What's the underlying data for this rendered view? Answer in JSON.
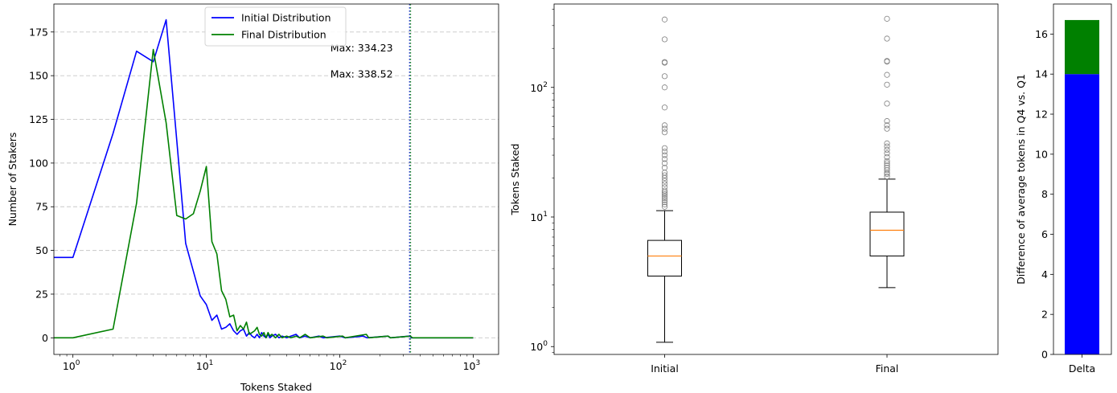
{
  "chart_data": [
    {
      "type": "line",
      "xlabel": "Tokens Staked",
      "ylabel": "Number of Stakers",
      "xscale": "log",
      "xlim": [
        0.72,
        1550
      ],
      "ylim": [
        -9.5,
        191
      ],
      "xtick_values": [
        1,
        10,
        100,
        1000
      ],
      "xtick_labels": [
        {
          "base": "10",
          "exp": "0"
        },
        {
          "base": "10",
          "exp": "1"
        },
        {
          "base": "10",
          "exp": "2"
        },
        {
          "base": "10",
          "exp": "3"
        }
      ],
      "ytick_values": [
        0,
        25,
        50,
        75,
        100,
        125,
        150,
        175
      ],
      "ytick_labels": [
        "0",
        "25",
        "50",
        "75",
        "100",
        "125",
        "150",
        "175"
      ],
      "grid": "horizontal dashed",
      "legend_position": "top-center",
      "series": [
        {
          "name": "Initial Distribution",
          "color": "#0000ff",
          "points": [
            [
              0.72,
              46
            ],
            [
              1,
              46
            ],
            [
              2,
              117
            ],
            [
              3,
              164
            ],
            [
              4,
              158
            ],
            [
              5,
              182
            ],
            [
              6,
              113
            ],
            [
              7,
              54
            ],
            [
              8,
              38
            ],
            [
              9,
              24
            ],
            [
              10,
              19
            ],
            [
              11,
              10
            ],
            [
              12,
              13
            ],
            [
              13,
              5
            ],
            [
              14,
              6
            ],
            [
              15,
              8
            ],
            [
              16,
              4
            ],
            [
              17,
              2
            ],
            [
              18,
              4
            ],
            [
              19,
              5
            ],
            [
              20,
              1
            ],
            [
              21,
              3
            ],
            [
              22,
              1
            ],
            [
              23,
              0
            ],
            [
              24,
              2
            ],
            [
              25,
              0
            ],
            [
              26,
              3
            ],
            [
              27,
              1
            ],
            [
              28,
              0
            ],
            [
              29,
              2
            ],
            [
              30,
              0
            ],
            [
              31,
              1
            ],
            [
              33,
              2
            ],
            [
              35,
              0
            ],
            [
              37,
              1
            ],
            [
              40,
              0
            ],
            [
              43,
              1
            ],
            [
              47,
              2
            ],
            [
              50,
              0
            ],
            [
              55,
              1
            ],
            [
              60,
              0
            ],
            [
              70,
              1
            ],
            [
              75,
              0
            ],
            [
              100,
              1
            ],
            [
              110,
              0
            ],
            [
              150,
              1
            ],
            [
              160,
              0
            ],
            [
              230,
              1
            ],
            [
              240,
              0
            ],
            [
              334,
              1
            ],
            [
              345,
              0
            ],
            [
              1000,
              0
            ]
          ]
        },
        {
          "name": "Final Distribution",
          "color": "#008000",
          "points": [
            [
              0.72,
              0
            ],
            [
              1,
              0
            ],
            [
              2,
              5
            ],
            [
              3,
              77
            ],
            [
              4,
              165
            ],
            [
              5,
              123
            ],
            [
              6,
              70
            ],
            [
              7,
              68
            ],
            [
              8,
              71
            ],
            [
              9,
              84
            ],
            [
              10,
              98
            ],
            [
              11,
              55
            ],
            [
              12,
              48
            ],
            [
              13,
              27
            ],
            [
              14,
              22
            ],
            [
              15,
              12
            ],
            [
              16,
              13
            ],
            [
              17,
              4
            ],
            [
              18,
              7
            ],
            [
              19,
              5
            ],
            [
              20,
              9
            ],
            [
              21,
              2
            ],
            [
              22,
              3
            ],
            [
              23,
              4
            ],
            [
              24,
              6
            ],
            [
              25,
              2
            ],
            [
              26,
              1
            ],
            [
              27,
              3
            ],
            [
              28,
              0
            ],
            [
              29,
              3
            ],
            [
              30,
              1
            ],
            [
              31,
              2
            ],
            [
              33,
              0
            ],
            [
              35,
              2
            ],
            [
              37,
              0
            ],
            [
              40,
              1
            ],
            [
              43,
              0
            ],
            [
              47,
              1
            ],
            [
              50,
              0
            ],
            [
              55,
              2
            ],
            [
              60,
              0
            ],
            [
              75,
              1
            ],
            [
              80,
              0
            ],
            [
              105,
              1
            ],
            [
              110,
              0
            ],
            [
              158,
              2
            ],
            [
              165,
              0
            ],
            [
              230,
              1
            ],
            [
              240,
              0
            ],
            [
              338,
              1
            ],
            [
              350,
              0
            ],
            [
              1000,
              0
            ]
          ]
        }
      ],
      "vlines": [
        {
          "x": 334.23,
          "color": "#0000ff",
          "style": "dotted"
        },
        {
          "x": 338.52,
          "color": "#008000",
          "style": "dotted"
        }
      ],
      "annotations": [
        {
          "text": "Max: 334.23",
          "color": "#0000ff",
          "x": 85,
          "y": 166
        },
        {
          "text": "Max: 338.52",
          "color": "#008000",
          "x": 85,
          "y": 151
        }
      ]
    },
    {
      "type": "box",
      "xlabel": "",
      "ylabel": "Tokens Staked",
      "yscale": "log",
      "ylim": [
        0.87,
        440
      ],
      "ytick_values": [
        1,
        10,
        100
      ],
      "ytick_labels": [
        {
          "base": "10",
          "exp": "0"
        },
        {
          "base": "10",
          "exp": "1"
        },
        {
          "base": "10",
          "exp": "2"
        }
      ],
      "categories": [
        "Initial",
        "Final"
      ],
      "boxes": [
        {
          "label": "Initial",
          "whislo": 1.08,
          "q1": 3.5,
          "med": 5.0,
          "q3": 6.6,
          "whishi": 11.2,
          "fliers": [
            12,
            12.5,
            13,
            13.5,
            14,
            14.5,
            15,
            15.5,
            16,
            17,
            18,
            19,
            20,
            21,
            22,
            24,
            26,
            28,
            30,
            32,
            34,
            45,
            48,
            51,
            70,
            100,
            122,
            155,
            157,
            235,
            334.23
          ]
        },
        {
          "label": "Final",
          "whislo": 2.85,
          "q1": 5.0,
          "med": 7.9,
          "q3": 10.9,
          "whishi": 19.6,
          "fliers": [
            20.5,
            21.5,
            22,
            23,
            24,
            25,
            26,
            27,
            29,
            31,
            33,
            35,
            37,
            48,
            51,
            55,
            75,
            105,
            125,
            158,
            160,
            238,
            338.52
          ]
        }
      ],
      "box_color": "#000000",
      "median_color": "#ff7f0e",
      "flier_color": "#808080"
    },
    {
      "type": "bar",
      "xlabel": "",
      "ylabel": "Difference of average tokens in Q4 vs. Q1",
      "categories": [
        "Delta"
      ],
      "ylim": [
        0,
        17.5
      ],
      "ytick_values": [
        0,
        2,
        4,
        6,
        8,
        10,
        12,
        14,
        16
      ],
      "ytick_labels": [
        "0",
        "2",
        "4",
        "6",
        "8",
        "10",
        "12",
        "14",
        "16"
      ],
      "stacked": [
        {
          "value": 14.0,
          "color": "#0000ff"
        },
        {
          "value": 2.7,
          "color": "#008000"
        }
      ]
    }
  ]
}
